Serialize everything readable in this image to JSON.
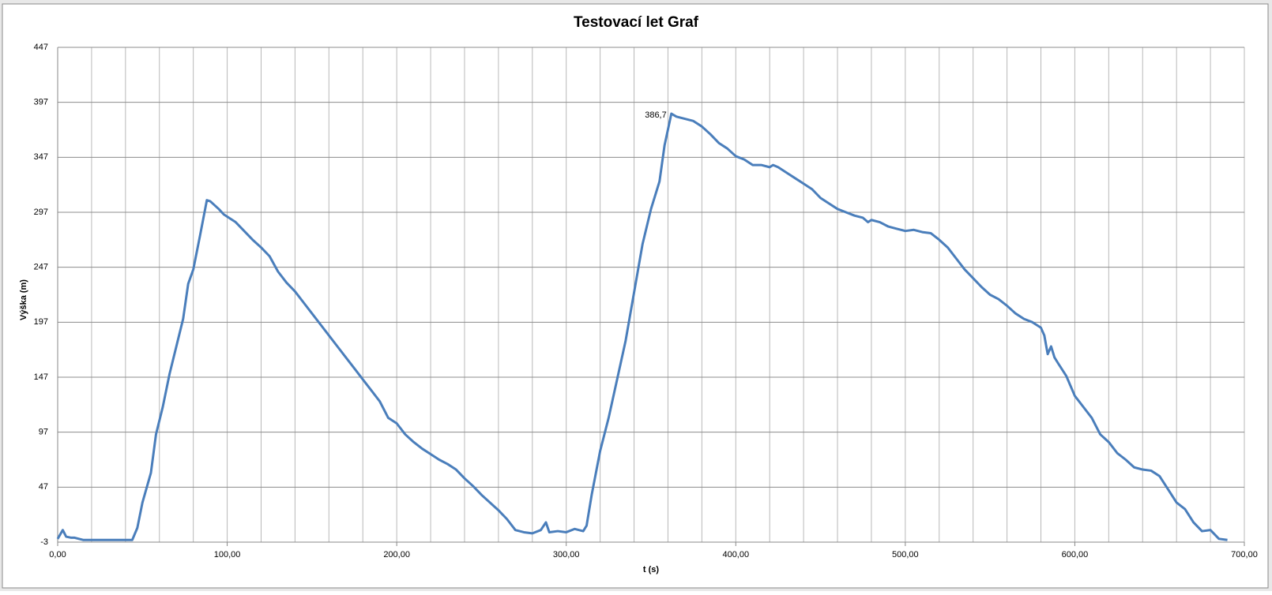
{
  "chart_data": {
    "type": "line",
    "title": "Testovací let Graf",
    "x_label": "t (s)",
    "y_label": "Výška (m)",
    "color": "#4a7ebb",
    "x": [
      0,
      3,
      5,
      8,
      10,
      15,
      20,
      30,
      40,
      44,
      47,
      50,
      55,
      58,
      62,
      66,
      70,
      74,
      77,
      80,
      84,
      88,
      90,
      95,
      98,
      105,
      110,
      115,
      120,
      125,
      130,
      135,
      140,
      145,
      150,
      155,
      160,
      165,
      170,
      175,
      180,
      185,
      190,
      195,
      200,
      205,
      210,
      215,
      220,
      225,
      230,
      235,
      240,
      245,
      250,
      255,
      260,
      265,
      270,
      275,
      280,
      285,
      288,
      290,
      295,
      300,
      305,
      310,
      312,
      315,
      320,
      325,
      330,
      335,
      340,
      345,
      350,
      355,
      358,
      362,
      365,
      370,
      375,
      380,
      385,
      390,
      395,
      400,
      405,
      410,
      415,
      420,
      422,
      425,
      430,
      435,
      440,
      445,
      450,
      455,
      460,
      465,
      470,
      475,
      478,
      480,
      485,
      490,
      495,
      500,
      505,
      510,
      515,
      520,
      525,
      530,
      535,
      540,
      545,
      550,
      555,
      560,
      565,
      570,
      575,
      580,
      582,
      584,
      586,
      588,
      590,
      595,
      600,
      605,
      610,
      615,
      620,
      625,
      630,
      635,
      640,
      645,
      650,
      655,
      660,
      665,
      670,
      675,
      680,
      685,
      690
    ],
    "values": [
      0,
      8,
      2,
      1,
      1,
      -1,
      -1,
      -1,
      -1,
      -1,
      10,
      33,
      60,
      95,
      120,
      150,
      175,
      200,
      232,
      245,
      276,
      308,
      307,
      300,
      295,
      288,
      280,
      272,
      265,
      257,
      243,
      233,
      225,
      215,
      205,
      195,
      185,
      175,
      165,
      155,
      145,
      135,
      125,
      110,
      105,
      95,
      88,
      82,
      77,
      72,
      68,
      63,
      55,
      48,
      40,
      33,
      26,
      18,
      8,
      6,
      5,
      8,
      15,
      6,
      7,
      6,
      9,
      7,
      12,
      40,
      80,
      110,
      145,
      180,
      224,
      268,
      300,
      325,
      358,
      386.7,
      384,
      382,
      380,
      375,
      368,
      360,
      355,
      348,
      345,
      340,
      340,
      338,
      340,
      338,
      333,
      328,
      323,
      318,
      310,
      305,
      300,
      297,
      294,
      292,
      288,
      290,
      288,
      284,
      282,
      280,
      281,
      279,
      278,
      272,
      265,
      255,
      245,
      237,
      229,
      222,
      218,
      212,
      205,
      200,
      197,
      192,
      185,
      168,
      175,
      165,
      160,
      148,
      130,
      120,
      110,
      95,
      88,
      78,
      72,
      65,
      63,
      62,
      57,
      45,
      33,
      27,
      15,
      7,
      8,
      0,
      -1
    ],
    "xlim": [
      0,
      700
    ],
    "ylim": [
      -3,
      447
    ],
    "xticks": [
      {
        "value": 0,
        "label": "0,00"
      },
      {
        "value": 100,
        "label": "100,00"
      },
      {
        "value": 200,
        "label": "200,00"
      },
      {
        "value": 300,
        "label": "300,00"
      },
      {
        "value": 400,
        "label": "400,00"
      },
      {
        "value": 500,
        "label": "500,00"
      },
      {
        "value": 600,
        "label": "600,00"
      },
      {
        "value": 700,
        "label": "700,00"
      }
    ],
    "x_gridlines": [
      0,
      20,
      40,
      60,
      80,
      100,
      120,
      140,
      160,
      180,
      200,
      220,
      240,
      260,
      280,
      300,
      320,
      340,
      360,
      380,
      400,
      420,
      440,
      460,
      480,
      500,
      520,
      540,
      560,
      580,
      600,
      620,
      640,
      660,
      680,
      700
    ],
    "yticks": [
      -3,
      47,
      97,
      147,
      197,
      247,
      297,
      347,
      397,
      447
    ],
    "grid": true,
    "annotations": [
      {
        "x": 362,
        "y": 386.7,
        "label": "386,7"
      }
    ]
  }
}
